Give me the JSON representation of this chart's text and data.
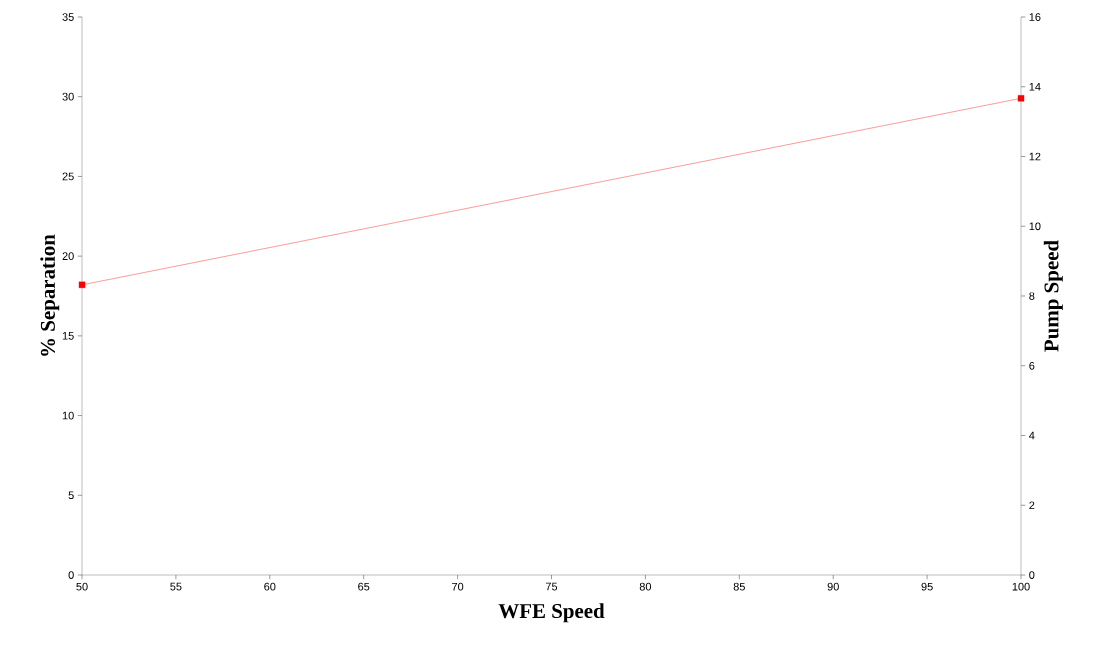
{
  "chart_data": {
    "type": "line",
    "xlabel": "WFE Speed",
    "ylabel": "% Separation",
    "y2label": "Pump Speed",
    "x": [
      50,
      100
    ],
    "series": [
      {
        "color": "#ff0000",
        "values": [
          18.2,
          29.9
        ]
      }
    ],
    "xlim": [
      50,
      100
    ],
    "xticks": [
      50,
      55,
      60,
      65,
      70,
      75,
      80,
      85,
      90,
      95,
      100
    ],
    "ylim": [
      0,
      35
    ],
    "yticks": [
      0,
      5,
      10,
      15,
      20,
      25,
      30,
      35
    ],
    "y2lim": [
      0,
      16
    ],
    "y2ticks": [
      0,
      2,
      4,
      6,
      8,
      10,
      12,
      14,
      16
    ],
    "marker": "square",
    "line_style": "solid"
  }
}
